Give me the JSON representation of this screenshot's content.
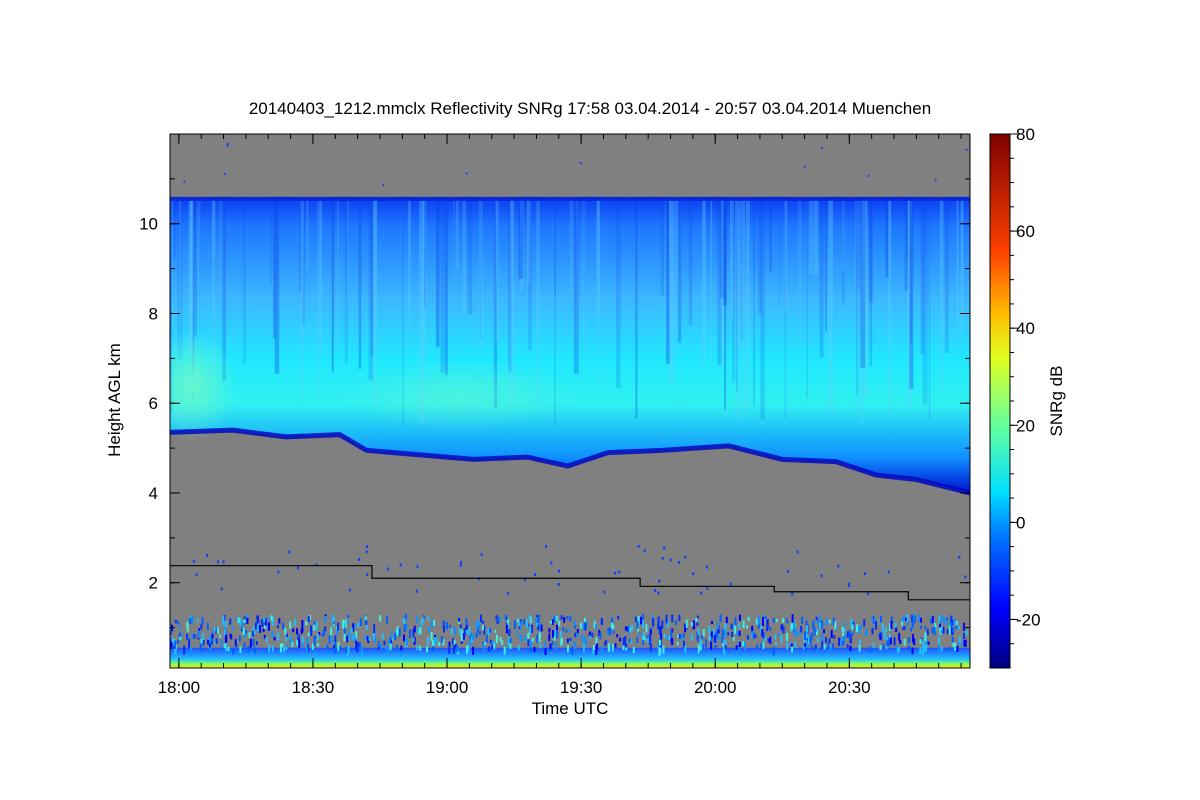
{
  "chart_data": {
    "type": "heatmap",
    "title": "20140403_1212.mmclx Reflectivity SNRg   17:58 03.04.2014 - 20:57 03.04.2014 Muenchen",
    "xlabel": "Time UTC",
    "ylabel": "Height AGL km",
    "colorbar_label": "SNRg dB",
    "x_range_hours": [
      17.967,
      20.95
    ],
    "y_range_km": [
      0.1,
      12.0
    ],
    "x_ticks": [
      {
        "value": 18.0,
        "label": "18:00"
      },
      {
        "value": 18.5,
        "label": "18:30"
      },
      {
        "value": 19.0,
        "label": "19:00"
      },
      {
        "value": 19.5,
        "label": "19:30"
      },
      {
        "value": 20.0,
        "label": "20:00"
      },
      {
        "value": 20.5,
        "label": "20:30"
      }
    ],
    "y_ticks": [
      {
        "value": 2,
        "label": "2"
      },
      {
        "value": 4,
        "label": "4"
      },
      {
        "value": 6,
        "label": "6"
      },
      {
        "value": 8,
        "label": "8"
      },
      {
        "value": 10,
        "label": "10"
      }
    ],
    "colorbar_range_db": [
      -30,
      80
    ],
    "colorbar_ticks": [
      {
        "value": -20,
        "label": "-20"
      },
      {
        "value": 0,
        "label": "0"
      },
      {
        "value": 20,
        "label": "20"
      },
      {
        "value": 40,
        "label": "40"
      },
      {
        "value": 60,
        "label": "60"
      },
      {
        "value": 80,
        "label": "80"
      }
    ],
    "cloud_top_km": 10.6,
    "cloud_base_km": [
      {
        "t": 17.967,
        "h": 5.35
      },
      {
        "t": 18.2,
        "h": 5.4
      },
      {
        "t": 18.4,
        "h": 5.25
      },
      {
        "t": 18.6,
        "h": 5.3
      },
      {
        "t": 18.7,
        "h": 4.95
      },
      {
        "t": 18.9,
        "h": 4.85
      },
      {
        "t": 19.1,
        "h": 4.75
      },
      {
        "t": 19.3,
        "h": 4.8
      },
      {
        "t": 19.45,
        "h": 4.6
      },
      {
        "t": 19.6,
        "h": 4.9
      },
      {
        "t": 19.8,
        "h": 4.95
      },
      {
        "t": 20.05,
        "h": 5.05
      },
      {
        "t": 20.25,
        "h": 4.75
      },
      {
        "t": 20.45,
        "h": 4.7
      },
      {
        "t": 20.6,
        "h": 4.4
      },
      {
        "t": 20.75,
        "h": 4.3
      },
      {
        "t": 20.95,
        "h": 4.0
      }
    ],
    "threshold_line_km": [
      {
        "t_start": 17.967,
        "t_end": 18.72,
        "h": 2.38
      },
      {
        "t_start": 18.72,
        "t_end": 19.72,
        "h": 2.1
      },
      {
        "t_start": 19.72,
        "t_end": 20.22,
        "h": 1.92
      },
      {
        "t_start": 20.22,
        "t_end": 20.72,
        "h": 1.8
      },
      {
        "t_start": 20.72,
        "t_end": 20.95,
        "h": 1.62
      }
    ],
    "colors": {
      "background_no_signal": "#808080",
      "colormap": [
        "#000080",
        "#0000ff",
        "#0080ff",
        "#00ffff",
        "#80ff80",
        "#ffff00",
        "#ff8000",
        "#ff0000",
        "#800000"
      ]
    }
  }
}
